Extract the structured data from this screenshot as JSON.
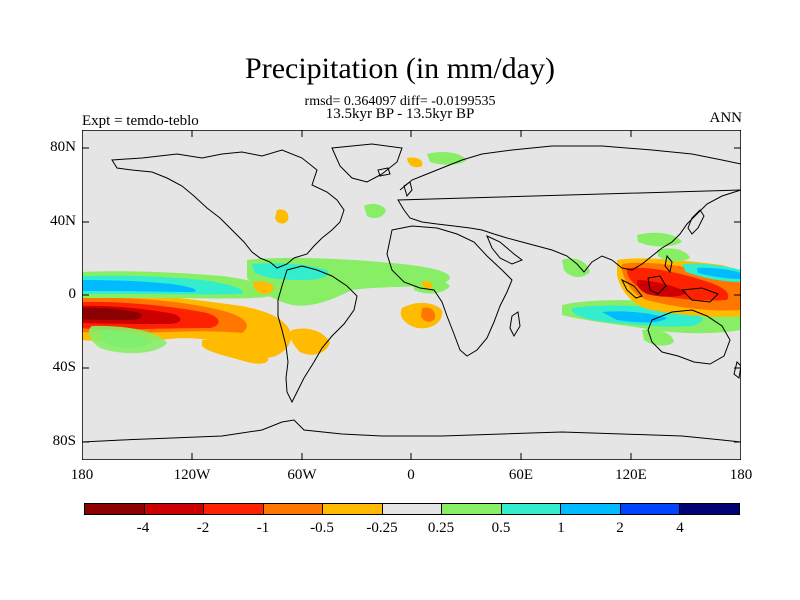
{
  "title": "Precipitation (in mm/day)",
  "stats": "rmsd= 0.364097 diff= -0.0199535",
  "period": "13.5kyr BP - 13.5kyr BP",
  "expt": "Expt = temdo-teblo",
  "season": "ANN",
  "lat_ticks": [
    "80N",
    "40N",
    "0",
    "40S",
    "80S"
  ],
  "lon_ticks": [
    "180",
    "120W",
    "60W",
    "0",
    "60E",
    "120E",
    "180"
  ],
  "colorbar": {
    "labels": [
      "-4",
      "-2",
      "-1",
      "-0.5",
      "-0.25",
      "0.25",
      "0.5",
      "1",
      "2",
      "4"
    ],
    "colors": [
      "#8b0000",
      "#cc0000",
      "#ff2200",
      "#ff7700",
      "#ffbb00",
      "#e5e5e5",
      "#88ee66",
      "#33eecc",
      "#00bbff",
      "#0044ff",
      "#000077"
    ]
  },
  "chart_data": {
    "type": "heatmap",
    "title": "Precipitation (in mm/day)",
    "xlabel": "",
    "ylabel": "",
    "xlim": [
      -180,
      180
    ],
    "ylim": [
      -90,
      90
    ],
    "contour_levels": [
      -4,
      -2,
      -1,
      -0.5,
      -0.25,
      0.25,
      0.5,
      1,
      2,
      4
    ],
    "features": [
      {
        "region": "eastern tropical Pacific south of equator",
        "lon": [
          -180,
          -100
        ],
        "lat": [
          -30,
          -5
        ],
        "range": [
          -4,
          -1
        ]
      },
      {
        "region": "equatorial Pacific band",
        "lon": [
          -180,
          -80
        ],
        "lat": [
          -5,
          10
        ],
        "range": [
          0.5,
          2
        ]
      },
      {
        "region": "tropical Atlantic / Caribbean",
        "lon": [
          -80,
          -20
        ],
        "lat": [
          -10,
          15
        ],
        "range": [
          0.25,
          1
        ]
      },
      {
        "region": "south-east Atlantic off Africa",
        "lon": [
          -5,
          15
        ],
        "lat": [
          -20,
          -5
        ],
        "range": [
          -1,
          -0.25
        ]
      },
      {
        "region": "western Pacific warm pool",
        "lon": [
          110,
          180
        ],
        "lat": [
          -15,
          20
        ],
        "range": [
          -4,
          -0.5
        ]
      },
      {
        "region": "south-west Pacific",
        "lon": [
          90,
          180
        ],
        "lat": [
          -20,
          -5
        ],
        "range": [
          0.25,
          2
        ]
      }
    ]
  }
}
